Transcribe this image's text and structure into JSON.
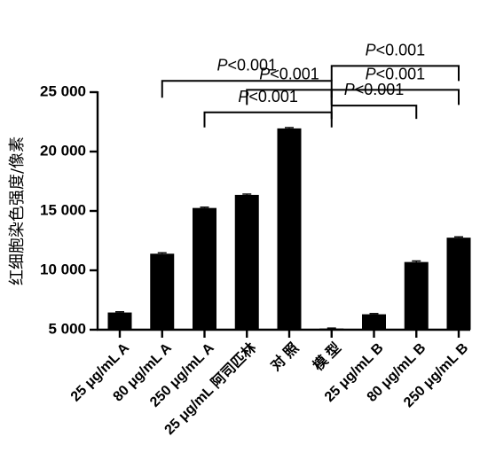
{
  "chart_data": {
    "type": "bar",
    "ylabel": "红细胞染色强度/像素",
    "xlabel": "",
    "ylim": [
      5000,
      25000
    ],
    "yticks": [
      5000,
      10000,
      15000,
      20000,
      25000
    ],
    "ytick_labels": [
      "5 000",
      "10 000",
      "15 000",
      "20 000",
      "25 000"
    ],
    "categories": [
      "25 μg/mL A",
      "80 μg/mL A",
      "250 μg/mL A",
      "25 μg/mL 阿司匹林",
      "对 照",
      "模 型",
      "25 μg/mL B",
      "80 μg/mL B",
      "250 μg/mL B"
    ],
    "values": [
      6450,
      11400,
      15250,
      16350,
      21950,
      5100,
      6300,
      10700,
      12750
    ],
    "errors": [
      60,
      80,
      70,
      70,
      70,
      40,
      60,
      90,
      70
    ],
    "annotations": [
      {
        "from": 5,
        "to": 3,
        "label_prefix": "P",
        "label_rest": "<0.001",
        "level": 25200
      },
      {
        "from": 5,
        "to": 8,
        "label_prefix": "P",
        "label_rest": "<0.001",
        "level": 25200
      },
      {
        "from": 5,
        "to": 2,
        "label_prefix": "P",
        "label_rest": "<0.001",
        "level": 23300
      },
      {
        "from": 5,
        "to": 1,
        "label_prefix": "P",
        "label_rest": "<0.001",
        "level": 25950
      },
      {
        "from": 5,
        "to": 7,
        "label_prefix": "P",
        "label_rest": "<0.001",
        "level": 23870
      },
      {
        "from": 5,
        "to": 8,
        "label_prefix": "P",
        "label_rest": "<0.001",
        "level": 27210
      }
    ]
  }
}
